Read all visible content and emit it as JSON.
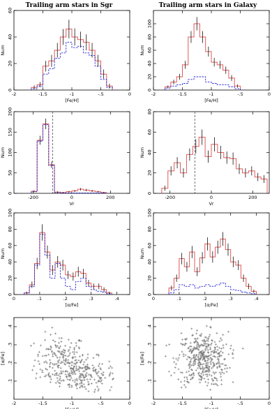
{
  "column_titles": [
    "Trailing arm stars in Sgr",
    "Trailing arm stars in Galaxy"
  ],
  "colors": {
    "hist_total": "#e05a5a",
    "hist_subset": "#2a2ad8",
    "errorbar": "#111111",
    "scatter": "#777777",
    "vline": "#333333"
  },
  "chart_data": [
    {
      "type": "bar",
      "panel": "sgr-feh",
      "xlabel": "[Fe/H]",
      "ylabel": "Num",
      "xlim": [
        -2,
        0
      ],
      "ylim": [
        0,
        60
      ],
      "xticks": [
        -2,
        -1.5,
        -1,
        -0.5,
        0
      ],
      "yticks": [
        0,
        20,
        40,
        60
      ],
      "bin_edges": [
        -1.7,
        -1.6,
        -1.5,
        -1.4,
        -1.3,
        -1.2,
        -1.1,
        -1.0,
        -0.9,
        -0.8,
        -0.7,
        -0.6,
        -0.5,
        -0.4,
        -0.3
      ],
      "series": [
        {
          "style": "solid",
          "values": [
            2,
            4,
            18,
            22,
            30,
            40,
            46,
            40,
            38,
            36,
            30,
            22,
            12,
            3
          ]
        },
        {
          "style": "dashed",
          "values": [
            1,
            3,
            12,
            16,
            24,
            28,
            36,
            32,
            33,
            28,
            26,
            18,
            8,
            2
          ]
        }
      ],
      "errors": [
        1.5,
        2,
        4,
        4.5,
        5.5,
        6,
        7,
        6.5,
        6,
        6,
        5.5,
        4.5,
        3.5,
        1.8
      ]
    },
    {
      "type": "bar",
      "panel": "gal-feh",
      "xlabel": "[Fe/H]",
      "ylabel": "Num",
      "xlim": [
        -2,
        0
      ],
      "ylim": [
        0,
        120
      ],
      "xticks": [
        -2,
        -1.5,
        -1,
        -0.5,
        0
      ],
      "yticks": [
        0,
        20,
        40,
        60,
        80,
        100
      ],
      "bin_edges": [
        -1.8,
        -1.7,
        -1.6,
        -1.5,
        -1.4,
        -1.3,
        -1.2,
        -1.1,
        -1.0,
        -0.9,
        -0.8,
        -0.7,
        -0.6,
        -0.5
      ],
      "series": [
        {
          "style": "solid",
          "values": [
            5,
            12,
            20,
            38,
            80,
            100,
            80,
            58,
            42,
            38,
            30,
            18,
            6
          ]
        },
        {
          "style": "dashed",
          "values": [
            3,
            6,
            8,
            10,
            16,
            20,
            20,
            12,
            10,
            8,
            8,
            5,
            2
          ]
        }
      ],
      "errors": [
        2,
        3.5,
        4.5,
        6,
        9,
        10,
        9,
        7.5,
        6.5,
        6,
        5.5,
        4.5,
        2.5
      ]
    },
    {
      "type": "bar",
      "panel": "sgr-vr",
      "xlabel": "Vr",
      "ylabel": "Num",
      "xlim": [
        -300,
        300
      ],
      "ylim": [
        0,
        200
      ],
      "xticks": [
        -200,
        0,
        200
      ],
      "yticks": [
        0,
        50,
        100,
        150,
        200
      ],
      "vline_x": -100,
      "bin_edges": [
        -210,
        -180,
        -150,
        -120,
        -90,
        -60,
        -30,
        0,
        30,
        60,
        90,
        120,
        150,
        180
      ],
      "series": [
        {
          "style": "solid",
          "values": [
            5,
            130,
            170,
            70,
            3,
            2,
            4,
            6,
            10,
            8,
            6,
            4,
            2
          ]
        },
        {
          "style": "dashed",
          "values": [
            4,
            128,
            168,
            68,
            2,
            1,
            1,
            1,
            1,
            1,
            1,
            1,
            1
          ]
        }
      ],
      "errors": [
        2,
        11,
        13,
        8,
        2,
        1.5,
        2,
        2.5,
        3,
        3,
        2.5,
        2,
        1.5
      ]
    },
    {
      "type": "bar",
      "panel": "gal-vr",
      "xlabel": "Vr",
      "ylabel": "Num",
      "xlim": [
        -280,
        280
      ],
      "ylim": [
        0,
        80
      ],
      "xticks": [
        -200,
        0,
        200
      ],
      "yticks": [
        0,
        20,
        40,
        60,
        80
      ],
      "vline_x": -80,
      "bin_edges": [
        -240,
        -210,
        -180,
        -150,
        -120,
        -90,
        -60,
        -30,
        0,
        30,
        60,
        90,
        120,
        150,
        180,
        210,
        240,
        270
      ],
      "series": [
        {
          "style": "solid",
          "values": [
            5,
            22,
            30,
            20,
            38,
            46,
            55,
            36,
            48,
            40,
            35,
            34,
            24,
            20,
            22,
            16,
            14
          ]
        }
      ],
      "errors": [
        2.5,
        4.5,
        5.5,
        4.5,
        6,
        7,
        7.5,
        6,
        7,
        6.5,
        6,
        6,
        5,
        4.5,
        4.5,
        4,
        3.8
      ]
    },
    {
      "type": "bar",
      "panel": "sgr-alpha",
      "xlabel": "[α/Fe]",
      "ylabel": "Num",
      "xlim": [
        0,
        0.45
      ],
      "ylim": [
        0,
        100
      ],
      "xticks": [
        0,
        0.1,
        0.2,
        0.3,
        0.4
      ],
      "yticks": [
        0,
        20,
        40,
        60,
        80,
        100
      ],
      "bin_edges": [
        0.04,
        0.06,
        0.08,
        0.1,
        0.12,
        0.14,
        0.16,
        0.18,
        0.2,
        0.22,
        0.24,
        0.26,
        0.28,
        0.3,
        0.32,
        0.34,
        0.36,
        0.38
      ],
      "series": [
        {
          "style": "solid",
          "values": [
            2,
            12,
            38,
            76,
            52,
            30,
            40,
            36,
            24,
            22,
            28,
            26,
            14,
            10,
            10,
            6,
            2
          ]
        },
        {
          "style": "dashed",
          "values": [
            2,
            10,
            36,
            74,
            48,
            20,
            38,
            20,
            10,
            6,
            16,
            20,
            10,
            6,
            4,
            3,
            1
          ]
        }
      ],
      "errors": [
        1.5,
        4,
        7,
        10,
        8,
        6,
        7,
        6.5,
        5,
        5,
        6,
        5.5,
        4,
        3.5,
        3.5,
        2.8,
        1.5
      ]
    },
    {
      "type": "bar",
      "panel": "gal-alpha",
      "xlabel": "[α/Fe]",
      "ylabel": "Num",
      "xlim": [
        0,
        0.45
      ],
      "ylim": [
        0,
        100
      ],
      "xticks": [
        0,
        0.1,
        0.2,
        0.3,
        0.4
      ],
      "yticks": [
        0,
        20,
        40,
        60,
        80,
        100
      ],
      "bin_edges": [
        0.06,
        0.08,
        0.1,
        0.12,
        0.14,
        0.16,
        0.18,
        0.2,
        0.22,
        0.24,
        0.26,
        0.28,
        0.3,
        0.32,
        0.34,
        0.36,
        0.38,
        0.4
      ],
      "series": [
        {
          "style": "solid",
          "values": [
            8,
            20,
            44,
            34,
            52,
            28,
            45,
            62,
            46,
            58,
            68,
            55,
            40,
            36,
            20,
            10,
            4
          ]
        },
        {
          "style": "dashed",
          "values": [
            2,
            6,
            12,
            10,
            12,
            8,
            10,
            12,
            10,
            12,
            14,
            10,
            6,
            5,
            3,
            2,
            1
          ]
        }
      ],
      "errors": [
        3,
        4.5,
        7,
        6,
        7.5,
        5.5,
        7,
        8,
        7,
        8,
        8.5,
        7.5,
        6.5,
        6,
        4.5,
        3.5,
        2
      ]
    },
    {
      "type": "scatter",
      "panel": "sgr-scatter",
      "xlabel": "[Fe/H]",
      "ylabel": "[α/Fe]",
      "xlim": [
        -2,
        0
      ],
      "ylim": [
        0,
        0.45
      ],
      "xticks": [
        -2,
        -1.5,
        -1,
        -0.5,
        0
      ],
      "yticks": [
        0.1,
        0.2,
        0.3,
        0.4
      ],
      "clusters": [
        {
          "cx": -1.2,
          "cy": 0.22,
          "sx": 0.22,
          "sy": 0.07,
          "n": 180,
          "xmin": -1.75,
          "xmax": -0.3,
          "ymin": 0.04,
          "ymax": 0.42
        },
        {
          "cx": -0.8,
          "cy": 0.13,
          "sx": 0.28,
          "sy": 0.05,
          "n": 200,
          "xmin": -1.7,
          "xmax": -0.25,
          "ymin": 0.04,
          "ymax": 0.42
        }
      ]
    },
    {
      "type": "scatter",
      "panel": "gal-scatter",
      "xlabel": "[Fe/H]",
      "ylabel": "[α/Fe]",
      "xlim": [
        -2,
        0
      ],
      "ylim": [
        0,
        0.45
      ],
      "xticks": [
        -2,
        -1.5,
        -1,
        -0.5,
        0
      ],
      "yticks": [
        0.1,
        0.2,
        0.3,
        0.4
      ],
      "clusters": [
        {
          "cx": -1.15,
          "cy": 0.22,
          "sx": 0.22,
          "sy": 0.075,
          "n": 420,
          "xmin": -1.8,
          "xmax": -0.25,
          "ymin": 0.04,
          "ymax": 0.42
        }
      ]
    }
  ]
}
